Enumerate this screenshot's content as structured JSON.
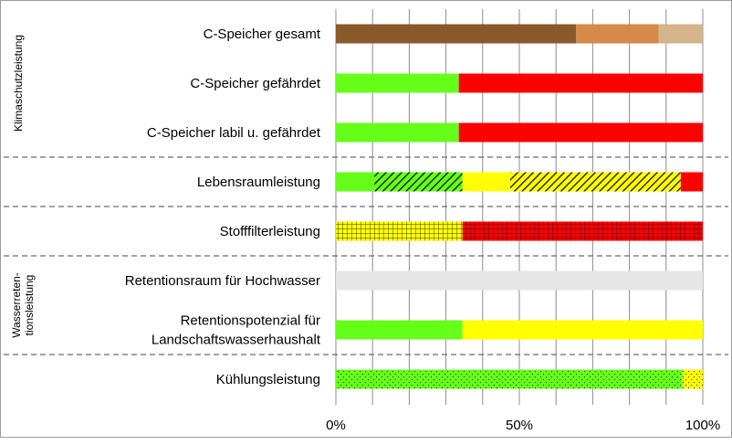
{
  "chart_data": {
    "type": "bar",
    "orientation": "horizontal",
    "stacked": true,
    "xlim": [
      0,
      100
    ],
    "x_ticks": [
      {
        "value": 0,
        "label": "0%"
      },
      {
        "value": 50,
        "label": "50%"
      },
      {
        "value": 100,
        "label": "100%"
      }
    ],
    "grid": true,
    "groups": [
      {
        "label": "Klimaschutzleistung",
        "rows": [
          0,
          1,
          2
        ]
      },
      {
        "label": "",
        "rows": [
          3
        ]
      },
      {
        "label": "",
        "rows": [
          4
        ]
      },
      {
        "label": "Wasserreten-\ntionsleistung",
        "rows": [
          5,
          6
        ]
      },
      {
        "label": "",
        "rows": [
          7
        ]
      }
    ],
    "rows": [
      {
        "label": "C-Speicher gesamt",
        "segments": [
          {
            "value": 65.5,
            "color": "#8B5A2B",
            "pattern": "none"
          },
          {
            "value": 22.5,
            "color": "#D58A4A",
            "pattern": "none"
          },
          {
            "value": 12.0,
            "color": "#D4B48A",
            "pattern": "none"
          }
        ]
      },
      {
        "label": "C-Speicher gefährdet",
        "segments": [
          {
            "value": 33.5,
            "color": "#66FF1A",
            "pattern": "none"
          },
          {
            "value": 66.5,
            "color": "#FF0000",
            "pattern": "none"
          }
        ]
      },
      {
        "label": "C-Speicher labil u. gefährdet",
        "segments": [
          {
            "value": 33.5,
            "color": "#66FF1A",
            "pattern": "none"
          },
          {
            "value": 66.5,
            "color": "#FF0000",
            "pattern": "none"
          }
        ]
      },
      {
        "label": "Lebensraumleistung",
        "segments": [
          {
            "value": 10.5,
            "color": "#66FF1A",
            "pattern": "none"
          },
          {
            "value": 24.0,
            "color": "#66FF1A",
            "pattern": "hatch"
          },
          {
            "value": 13.0,
            "color": "#FFFF00",
            "pattern": "none"
          },
          {
            "value": 46.5,
            "color": "#FFFF00",
            "pattern": "hatch"
          },
          {
            "value": 6.0,
            "color": "#FF0000",
            "pattern": "none"
          }
        ]
      },
      {
        "label": "Stofffilterleistung",
        "segments": [
          {
            "value": 34.5,
            "color": "#FFFF00",
            "pattern": "grid"
          },
          {
            "value": 65.5,
            "color": "#FF0000",
            "pattern": "grid"
          }
        ]
      },
      {
        "label": "Retentionsraum für Hochwasser",
        "segments": [
          {
            "value": 100.0,
            "color": "#E6E6E6",
            "pattern": "none"
          }
        ]
      },
      {
        "label": "Retentionspotenzial für\nLandschaftswasserhaushalt",
        "segments": [
          {
            "value": 34.5,
            "color": "#66FF1A",
            "pattern": "none"
          },
          {
            "value": 65.5,
            "color": "#FFFF00",
            "pattern": "none"
          }
        ]
      },
      {
        "label": "Kühlungsleistung",
        "segments": [
          {
            "value": 94.5,
            "color": "#66FF1A",
            "pattern": "dots"
          },
          {
            "value": 5.5,
            "color": "#FFFF00",
            "pattern": "dots"
          }
        ]
      }
    ]
  }
}
